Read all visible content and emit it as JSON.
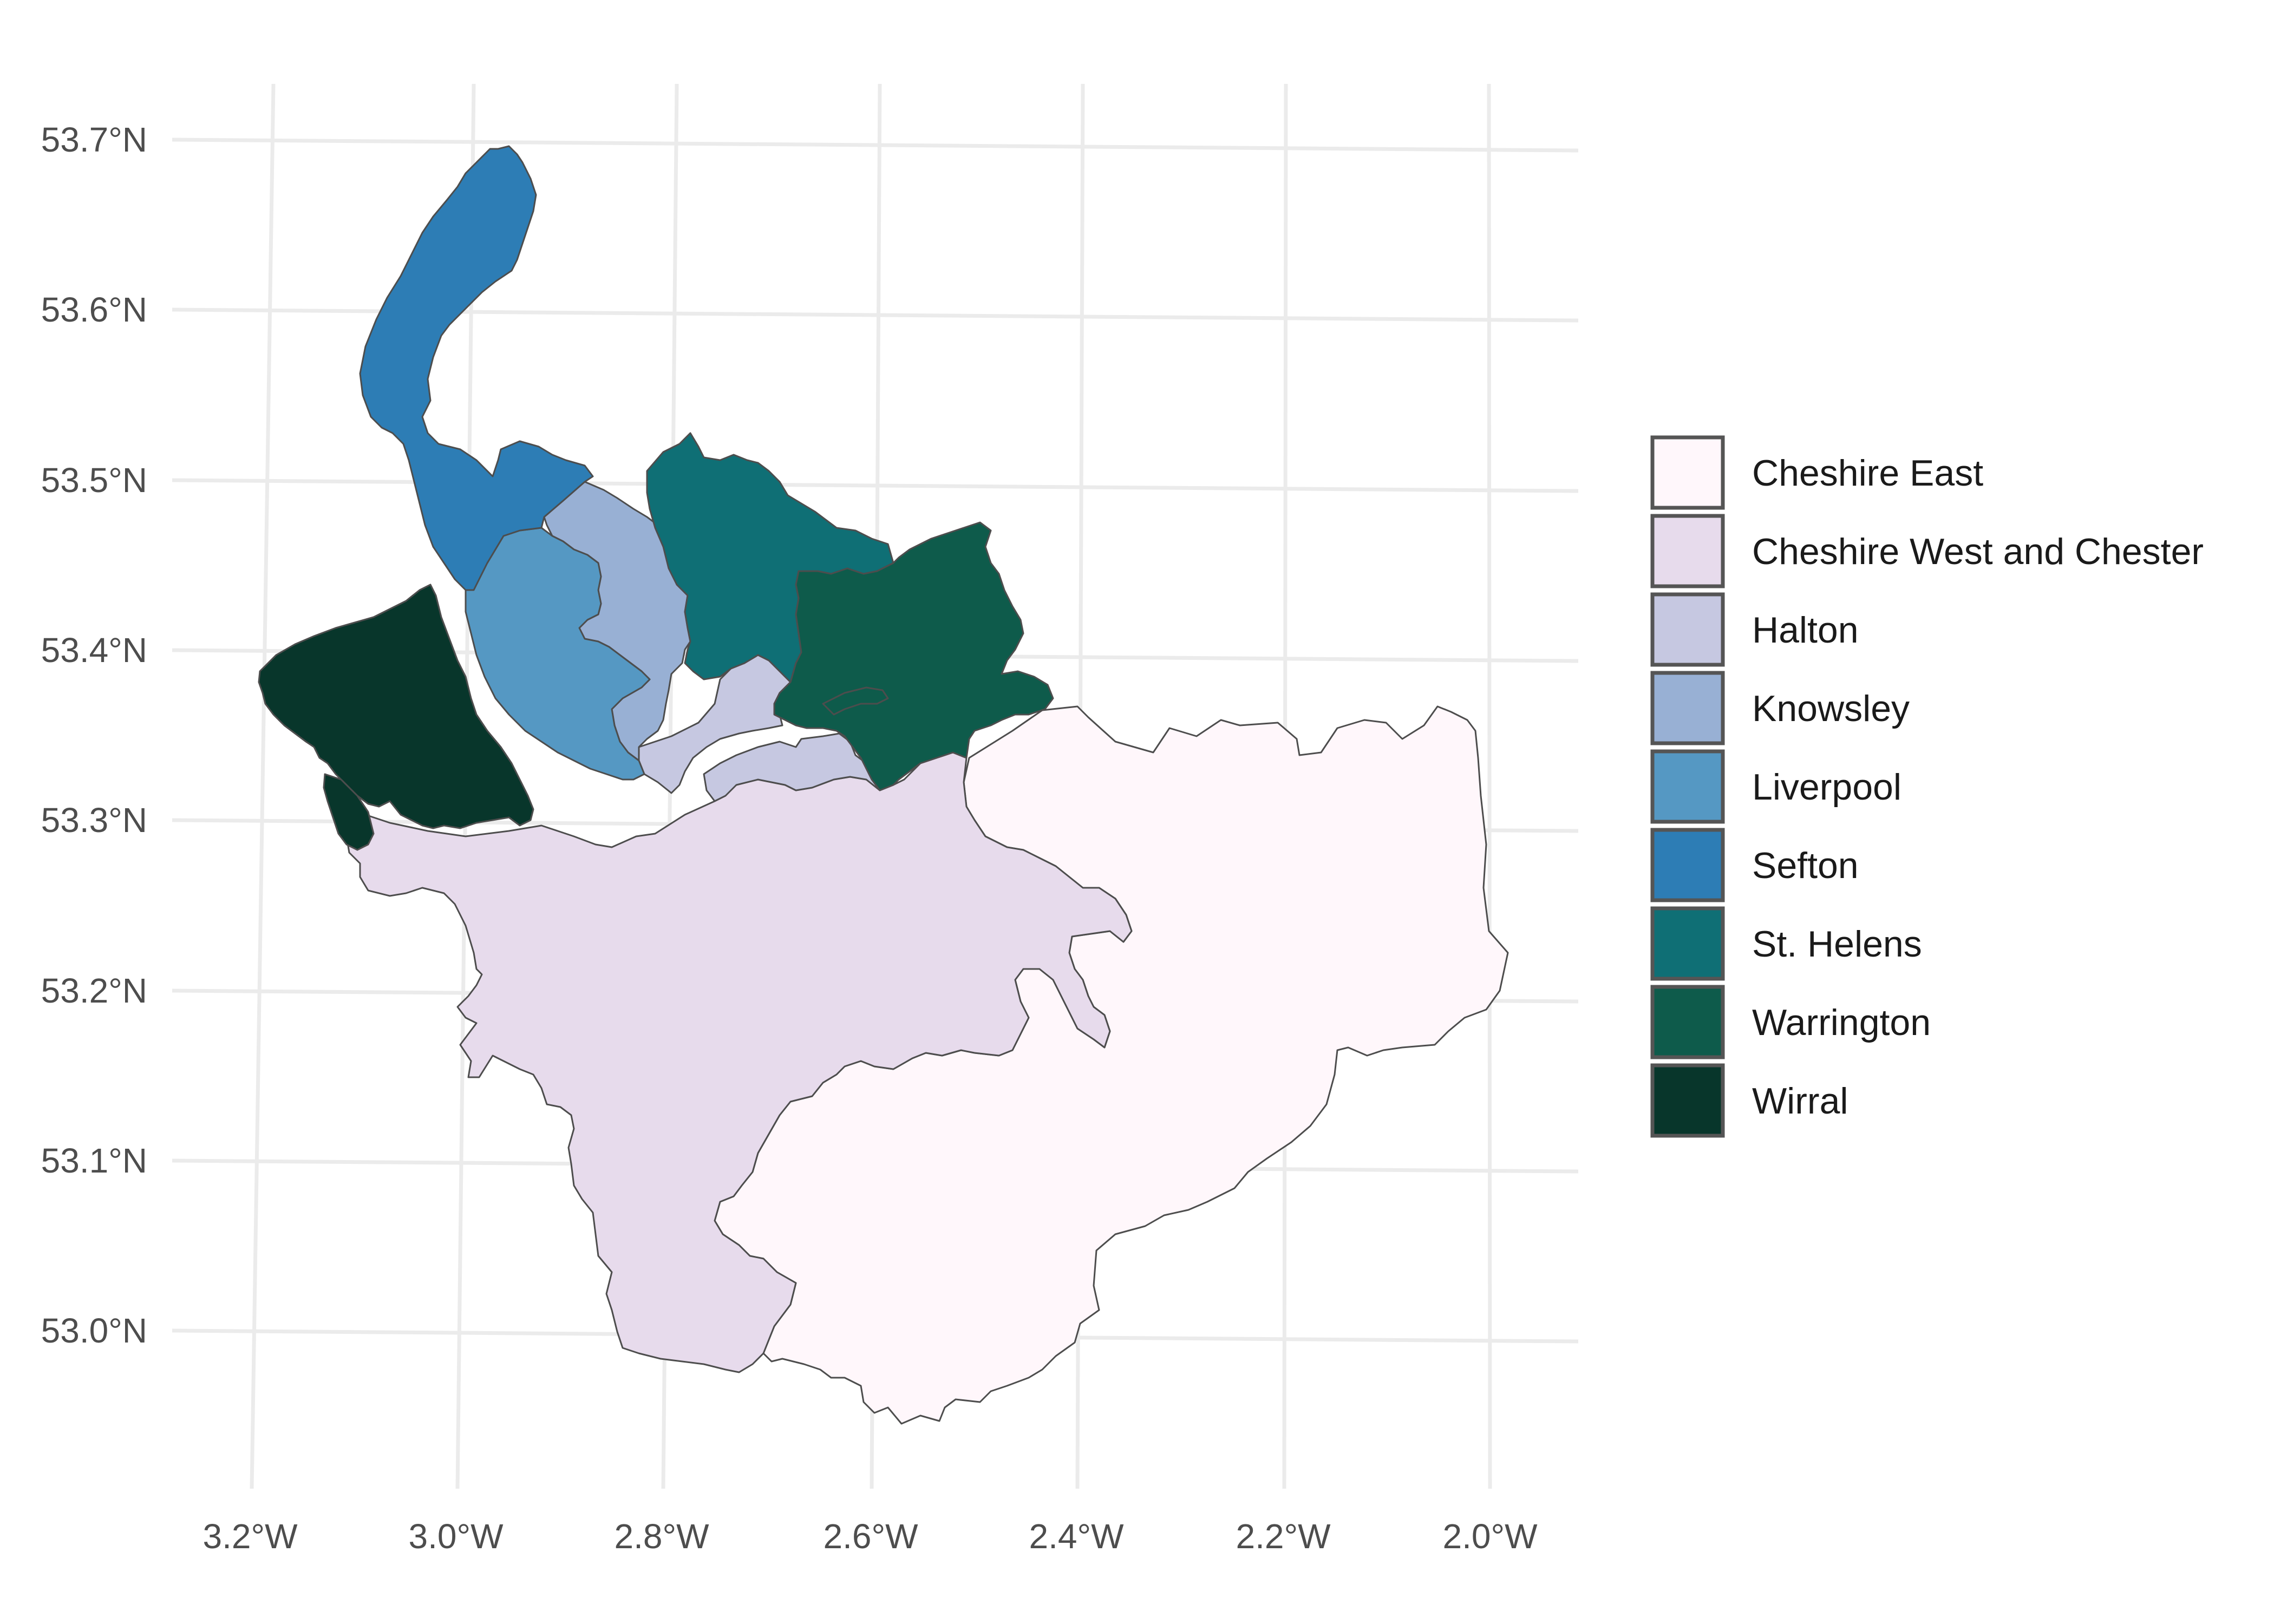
{
  "map": {
    "x_axis": {
      "tick_labels": [
        "3.2°W",
        "3.0°W",
        "2.8°W",
        "2.6°W",
        "2.4°W",
        "2.2°W",
        "2.0°W"
      ],
      "ticks_deg": [
        -3.2,
        -3.0,
        -2.8,
        -2.6,
        -2.4,
        -2.2,
        -2.0
      ]
    },
    "y_axis": {
      "tick_labels": [
        "53.0°N",
        "53.1°N",
        "53.2°N",
        "53.3°N",
        "53.4°N",
        "53.5°N",
        "53.6°N",
        "53.7°N"
      ],
      "ticks_deg": [
        53.0,
        53.1,
        53.2,
        53.3,
        53.4,
        53.5,
        53.6,
        53.7
      ]
    },
    "grid": true,
    "legend_position": "right"
  },
  "legend": {
    "items": [
      {
        "label": "Cheshire East",
        "color": "#fff7fb"
      },
      {
        "label": "Cheshire West and Chester",
        "color": "#e7dbec"
      },
      {
        "label": "Halton",
        "color": "#c6c8e1"
      },
      {
        "label": "Knowsley",
        "color": "#98b0d4"
      },
      {
        "label": "Liverpool",
        "color": "#5598c3"
      },
      {
        "label": "Sefton",
        "color": "#2d7db5"
      },
      {
        "label": "St. Helens",
        "color": "#0f6f75"
      },
      {
        "label": "Warrington",
        "color": "#0e5b4b"
      },
      {
        "label": "Wirral",
        "color": "#08362b"
      }
    ]
  }
}
